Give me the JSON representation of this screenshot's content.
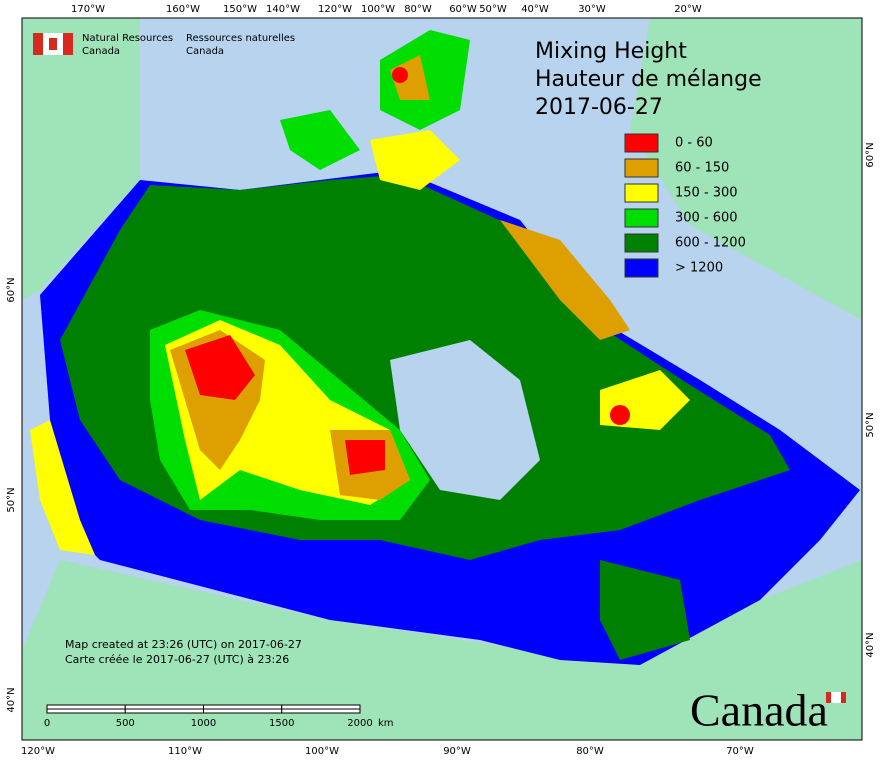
{
  "header": {
    "agency_en": [
      "Natural Resources",
      "Canada"
    ],
    "agency_fr": [
      "Ressources naturelles",
      "Canada"
    ]
  },
  "title": [
    "Mixing Height",
    "Hauteur de mélange",
    "2017-06-27"
  ],
  "legend": [
    {
      "label": "0 - 60",
      "color": "#ff0000"
    },
    {
      "label": "60 - 150",
      "color": "#dda000"
    },
    {
      "label": "150 - 300",
      "color": "#ffff00"
    },
    {
      "label": "300 - 600",
      "color": "#00dd00"
    },
    {
      "label": "600 - 1200",
      "color": "#008000"
    },
    {
      "label": "> 1200",
      "color": "#0000ff"
    }
  ],
  "graticule": {
    "top": [
      "170°W",
      "160°W",
      "150°W",
      "140°W",
      "120°W",
      "100°W",
      "80°W",
      "60°W",
      "50°W",
      "40°W",
      "30°W",
      "20°W"
    ],
    "bottom": [
      "120°W",
      "110°W",
      "100°W",
      "90°W",
      "80°W",
      "70°W"
    ],
    "left": [
      "60°N",
      "50°N",
      "40°N"
    ],
    "right": [
      "60°N",
      "50°N",
      "40°N"
    ]
  },
  "footer": [
    "Map created at 23:26 (UTC) on 2017-06-27",
    "Carte créée le 2017-06-27 (UTC) à 23:26"
  ],
  "scale": {
    "ticks": [
      0,
      500,
      1000,
      1500,
      2000
    ],
    "unit": "km"
  },
  "wordmark": "Canada"
}
